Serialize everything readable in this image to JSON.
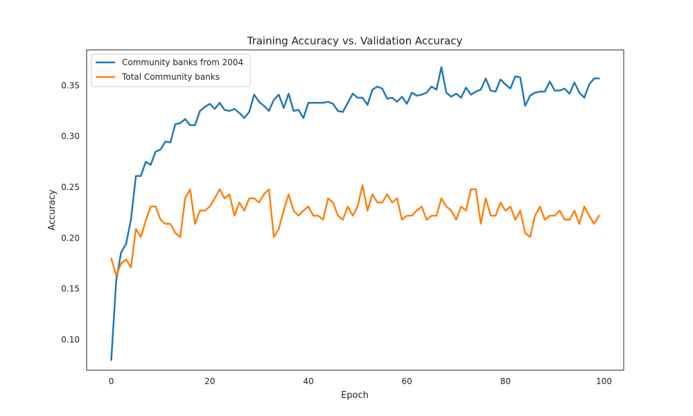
{
  "chart_data": {
    "type": "line",
    "title": "Training Accuracy vs. Validation Accuracy",
    "xlabel": "Epoch",
    "ylabel": "Accuracy",
    "xlim": [
      -5,
      104
    ],
    "ylim": [
      0.07,
      0.385
    ],
    "xticks": [
      0,
      20,
      40,
      60,
      80,
      100
    ],
    "yticks": [
      0.1,
      0.15,
      0.2,
      0.25,
      0.3,
      0.35
    ],
    "grid": false,
    "legend_position": "upper-left",
    "x": [
      0,
      1,
      2,
      3,
      4,
      5,
      6,
      7,
      8,
      9,
      10,
      11,
      12,
      13,
      14,
      15,
      16,
      17,
      18,
      19,
      20,
      21,
      22,
      23,
      24,
      25,
      26,
      27,
      28,
      29,
      30,
      31,
      32,
      33,
      34,
      35,
      36,
      37,
      38,
      39,
      40,
      41,
      42,
      43,
      44,
      45,
      46,
      47,
      48,
      49,
      50,
      51,
      52,
      53,
      54,
      55,
      56,
      57,
      58,
      59,
      60,
      61,
      62,
      63,
      64,
      65,
      66,
      67,
      68,
      69,
      70,
      71,
      72,
      73,
      74,
      75,
      76,
      77,
      78,
      79,
      80,
      81,
      82,
      83,
      84,
      85,
      86,
      87,
      88,
      89,
      90,
      91,
      92,
      93,
      94,
      95,
      96,
      97,
      98,
      99
    ],
    "series": [
      {
        "name": "Community banks from 2004",
        "color": "#1f77b4",
        "values": [
          0.08,
          0.158,
          0.186,
          0.194,
          0.218,
          0.261,
          0.261,
          0.275,
          0.272,
          0.285,
          0.287,
          0.295,
          0.294,
          0.312,
          0.313,
          0.317,
          0.311,
          0.311,
          0.325,
          0.329,
          0.332,
          0.327,
          0.333,
          0.326,
          0.325,
          0.327,
          0.323,
          0.318,
          0.324,
          0.341,
          0.334,
          0.33,
          0.325,
          0.336,
          0.341,
          0.328,
          0.342,
          0.325,
          0.326,
          0.318,
          0.333,
          0.333,
          0.333,
          0.333,
          0.334,
          0.332,
          0.325,
          0.324,
          0.333,
          0.342,
          0.338,
          0.338,
          0.331,
          0.346,
          0.349,
          0.347,
          0.337,
          0.338,
          0.334,
          0.339,
          0.332,
          0.343,
          0.34,
          0.341,
          0.343,
          0.349,
          0.346,
          0.368,
          0.343,
          0.339,
          0.342,
          0.338,
          0.348,
          0.341,
          0.344,
          0.346,
          0.357,
          0.345,
          0.344,
          0.356,
          0.351,
          0.347,
          0.359,
          0.358,
          0.33,
          0.34,
          0.343,
          0.344,
          0.344,
          0.354,
          0.345,
          0.345,
          0.347,
          0.342,
          0.353,
          0.343,
          0.338,
          0.351,
          0.357,
          0.357
        ]
      },
      {
        "name": "Total Community banks",
        "color": "#ff7f0e",
        "values": [
          0.18,
          0.163,
          0.175,
          0.179,
          0.171,
          0.209,
          0.201,
          0.217,
          0.231,
          0.231,
          0.218,
          0.214,
          0.214,
          0.205,
          0.201,
          0.239,
          0.248,
          0.214,
          0.227,
          0.227,
          0.231,
          0.239,
          0.248,
          0.239,
          0.243,
          0.222,
          0.235,
          0.227,
          0.239,
          0.239,
          0.235,
          0.243,
          0.248,
          0.201,
          0.209,
          0.227,
          0.243,
          0.227,
          0.222,
          0.227,
          0.231,
          0.222,
          0.222,
          0.218,
          0.239,
          0.235,
          0.222,
          0.218,
          0.231,
          0.222,
          0.231,
          0.252,
          0.227,
          0.243,
          0.235,
          0.235,
          0.243,
          0.235,
          0.239,
          0.218,
          0.222,
          0.222,
          0.227,
          0.231,
          0.218,
          0.222,
          0.222,
          0.239,
          0.231,
          0.227,
          0.218,
          0.231,
          0.227,
          0.248,
          0.248,
          0.214,
          0.239,
          0.222,
          0.222,
          0.235,
          0.227,
          0.231,
          0.218,
          0.227,
          0.205,
          0.201,
          0.222,
          0.231,
          0.218,
          0.222,
          0.222,
          0.227,
          0.218,
          0.218,
          0.227,
          0.214,
          0.231,
          0.222,
          0.214,
          0.222
        ]
      }
    ]
  }
}
